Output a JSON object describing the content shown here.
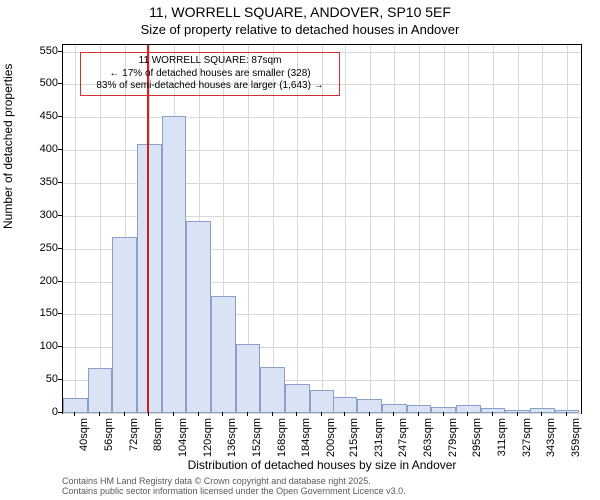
{
  "title_line1": "11, WORRELL SQUARE, ANDOVER, SP10 5EF",
  "title_line2": "Size of property relative to detached houses in Andover",
  "y_label": "Number of detached properties",
  "x_label": "Distribution of detached houses by size in Andover",
  "footer_line1": "Contains HM Land Registry data © Crown copyright and database right 2025.",
  "footer_line2": "Contains public sector information licensed under the Open Government Licence v3.0.",
  "annotation": {
    "line1": "11 WORRELL SQUARE: 87sqm",
    "line2": "← 17% of detached houses are smaller (328)",
    "line3": "83% of semi-detached houses are larger (1,643) →",
    "border_color": "#d03030",
    "border_width": 1,
    "bg": "transparent"
  },
  "chart": {
    "type": "histogram",
    "plot_bg": "#ffffff",
    "grid_color": "#d9d9d9",
    "bar_fill": "#d9e3f3",
    "bar_border": "#8aa0c8",
    "bar_border_width": 1,
    "marker_color": "#cc2222",
    "marker_value": 87,
    "x_range": [
      32,
      368
    ],
    "y_range": [
      0,
      560
    ],
    "y_ticks": [
      0,
      50,
      100,
      150,
      200,
      250,
      300,
      350,
      400,
      450,
      500,
      550
    ],
    "x_ticks": [
      40,
      56,
      72,
      88,
      104,
      120,
      136,
      152,
      168,
      184,
      200,
      215,
      231,
      247,
      263,
      279,
      295,
      311,
      327,
      343,
      359
    ],
    "x_tick_suffix": "sqm",
    "bar_width_data": 16,
    "bars": [
      {
        "x": 40,
        "y": 23
      },
      {
        "x": 56,
        "y": 68
      },
      {
        "x": 72,
        "y": 268
      },
      {
        "x": 88,
        "y": 410
      },
      {
        "x": 104,
        "y": 452
      },
      {
        "x": 120,
        "y": 292
      },
      {
        "x": 136,
        "y": 178
      },
      {
        "x": 152,
        "y": 105
      },
      {
        "x": 168,
        "y": 70
      },
      {
        "x": 184,
        "y": 44
      },
      {
        "x": 200,
        "y": 35
      },
      {
        "x": 215,
        "y": 25
      },
      {
        "x": 231,
        "y": 22
      },
      {
        "x": 247,
        "y": 14
      },
      {
        "x": 263,
        "y": 12
      },
      {
        "x": 279,
        "y": 9
      },
      {
        "x": 295,
        "y": 12
      },
      {
        "x": 311,
        "y": 7
      },
      {
        "x": 327,
        "y": 5
      },
      {
        "x": 343,
        "y": 8
      },
      {
        "x": 359,
        "y": 4
      }
    ],
    "tick_fontsize": 11,
    "label_fontsize": 12,
    "title_fontsize": 14
  }
}
